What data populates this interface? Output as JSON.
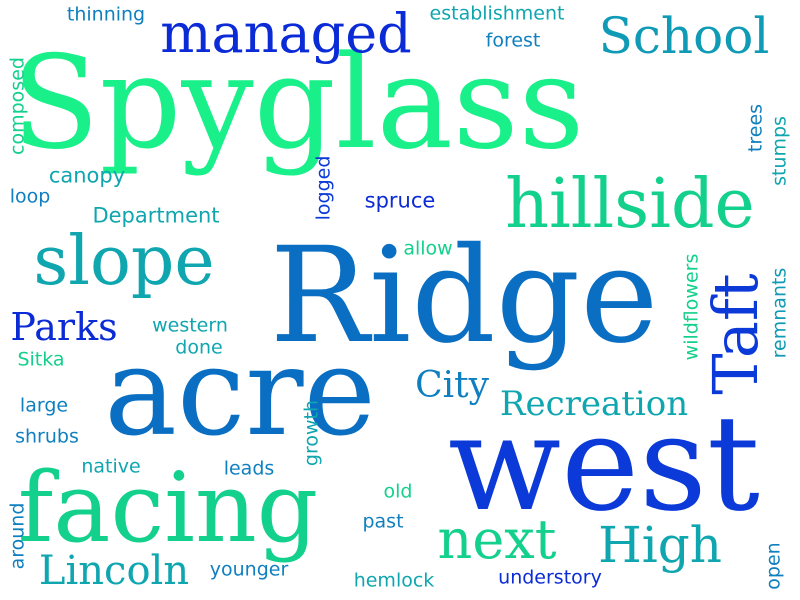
{
  "words": [
    {
      "text": "Spyglass",
      "color": "#19f08a"
    },
    {
      "text": "Ridge",
      "color": "#0a6fc2"
    },
    {
      "text": "west",
      "color": "#0b3ad9"
    },
    {
      "text": "acre",
      "color": "#0a6fc2"
    },
    {
      "text": "facing",
      "color": "#13d08c"
    },
    {
      "text": "hillside",
      "color": "#13d08c"
    },
    {
      "text": "slope",
      "color": "#0fa6b0"
    },
    {
      "text": "managed",
      "color": "#0b2bd6"
    },
    {
      "text": "School",
      "color": "#0f9ab5"
    },
    {
      "text": "Taft",
      "color": "#0b3ad9"
    },
    {
      "text": "next",
      "color": "#13d08c"
    },
    {
      "text": "High",
      "color": "#0fa6b0"
    },
    {
      "text": "Lincoln",
      "color": "#0fa6b0"
    },
    {
      "text": "Parks",
      "color": "#0b2bd6"
    },
    {
      "text": "City",
      "color": "#0f7fbf"
    },
    {
      "text": "Recreation",
      "color": "#0fa6b0"
    },
    {
      "text": "thinning",
      "color": "#0f7fbf"
    },
    {
      "text": "establishment",
      "color": "#0fa6b0"
    },
    {
      "text": "forest",
      "color": "#0f7fbf"
    },
    {
      "text": "composed",
      "color": "#13d08c"
    },
    {
      "text": "canopy",
      "color": "#0fa6b0"
    },
    {
      "text": "loop",
      "color": "#0f7fbf"
    },
    {
      "text": "Department",
      "color": "#0fa6b0"
    },
    {
      "text": "logged",
      "color": "#0b3ad9"
    },
    {
      "text": "spruce",
      "color": "#0b2bd6"
    },
    {
      "text": "trees",
      "color": "#0f7fbf"
    },
    {
      "text": "stumps",
      "color": "#0fa6b0"
    },
    {
      "text": "allow",
      "color": "#13d08c"
    },
    {
      "text": "wildflowers",
      "color": "#13d08c"
    },
    {
      "text": "remnants",
      "color": "#0f9ab5"
    },
    {
      "text": "western",
      "color": "#0fa6b0"
    },
    {
      "text": "done",
      "color": "#0fa6b0"
    },
    {
      "text": "Sitka",
      "color": "#13d08c"
    },
    {
      "text": "large",
      "color": "#0f7fbf"
    },
    {
      "text": "shrubs",
      "color": "#0f7fbf"
    },
    {
      "text": "growth",
      "color": "#0fa6b0"
    },
    {
      "text": "native",
      "color": "#0fa6b0"
    },
    {
      "text": "leads",
      "color": "#0f7fbf"
    },
    {
      "text": "old",
      "color": "#13d08c"
    },
    {
      "text": "past",
      "color": "#0f7fbf"
    },
    {
      "text": "around",
      "color": "#0f7fbf"
    },
    {
      "text": "younger",
      "color": "#0f7fbf"
    },
    {
      "text": "hemlock",
      "color": "#0fa6b0"
    },
    {
      "text": "understory",
      "color": "#0b2bd6"
    },
    {
      "text": "open",
      "color": "#0f7fbf"
    }
  ]
}
